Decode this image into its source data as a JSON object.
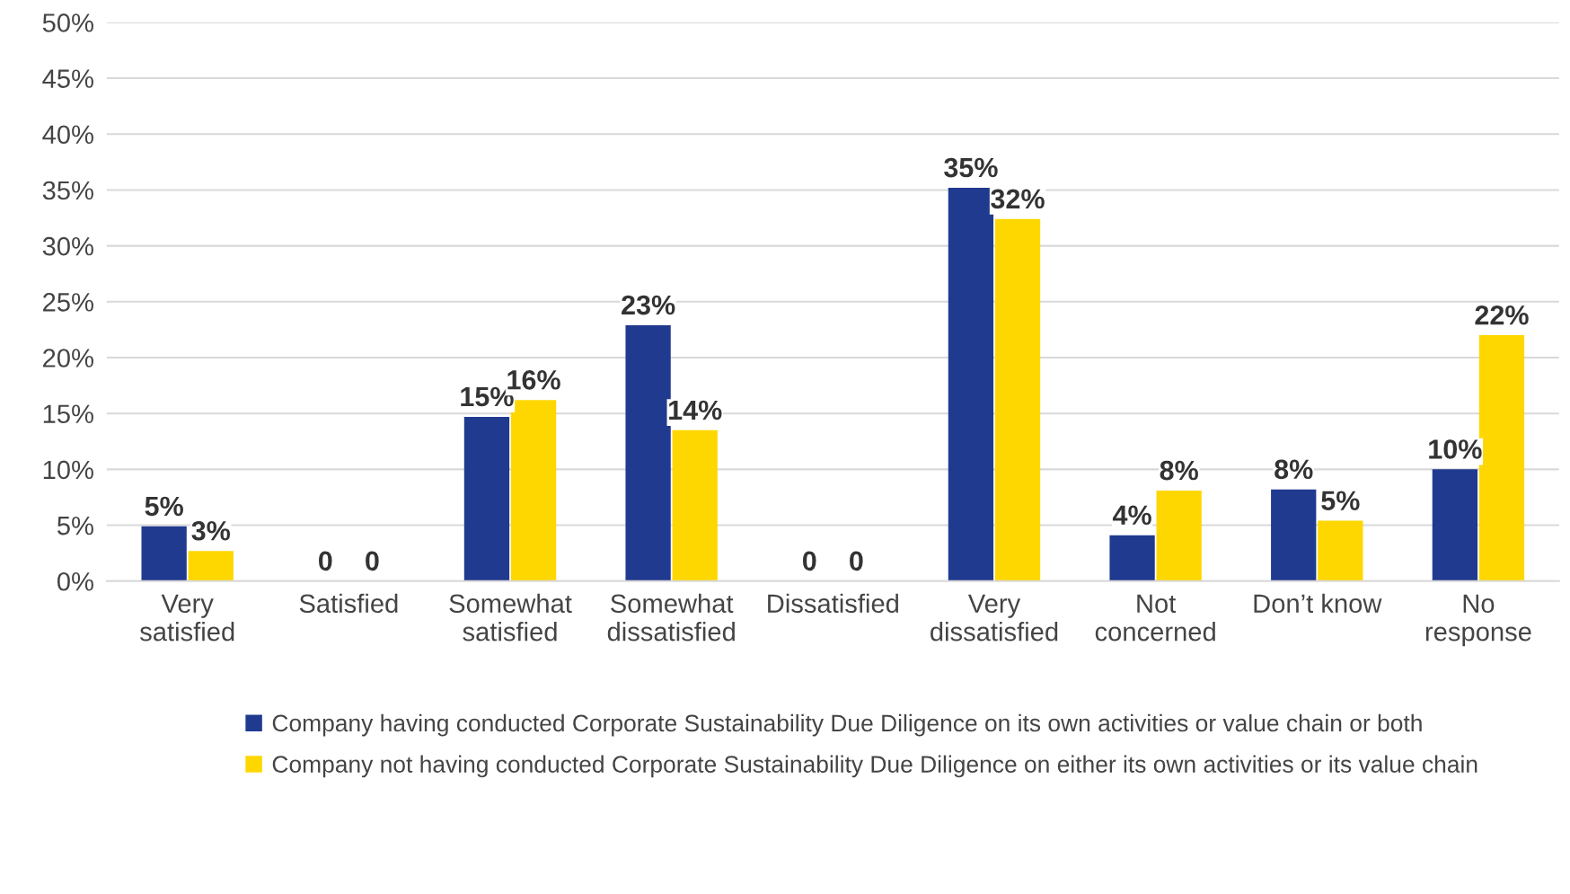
{
  "chart_data": {
    "type": "bar",
    "categories": [
      "Very\nsatisfied",
      "Satisfied",
      "Somewhat\nsatisfied",
      "Somewhat\ndissatisfied",
      "Dissatisfied",
      "Very\ndissatisfied",
      "Not\nconcerned",
      "Don’t know",
      "No\nresponse"
    ],
    "series": [
      {
        "name": "Company having conducted Corporate Sustainability Due Diligence on its own activities or value chain or both",
        "color": "#203a8f",
        "values": [
          4.9,
          0,
          14.7,
          22.9,
          0,
          35.2,
          4.1,
          8.2,
          10.0
        ],
        "value_labels": [
          "5%",
          "0",
          "15%",
          "23%",
          "0",
          "35%",
          "4%",
          "8%",
          "10%"
        ]
      },
      {
        "name": "Company not having conducted Corporate Sustainability Due Diligence on either its own activities or its value chain",
        "color": "#ffd700",
        "values": [
          2.7,
          0,
          16.2,
          13.5,
          0,
          32.4,
          8.1,
          5.4,
          22.0
        ],
        "value_labels": [
          "3%",
          "0",
          "16%",
          "14%",
          "0",
          "32%",
          "8%",
          "5%",
          "22%"
        ]
      }
    ],
    "ylim": [
      0,
      50
    ],
    "yticks": [
      {
        "value": 0,
        "label": "0%"
      },
      {
        "value": 5,
        "label": "5%"
      },
      {
        "value": 10,
        "label": "10%"
      },
      {
        "value": 15,
        "label": "15%"
      },
      {
        "value": 20,
        "label": "20%"
      },
      {
        "value": 25,
        "label": "25%"
      },
      {
        "value": 30,
        "label": "30%"
      },
      {
        "value": 35,
        "label": "35%"
      },
      {
        "value": 40,
        "label": "40%"
      },
      {
        "value": 45,
        "label": "45%"
      },
      {
        "value": 50,
        "label": "50%"
      }
    ],
    "grid": "y",
    "legend": "bottom"
  }
}
